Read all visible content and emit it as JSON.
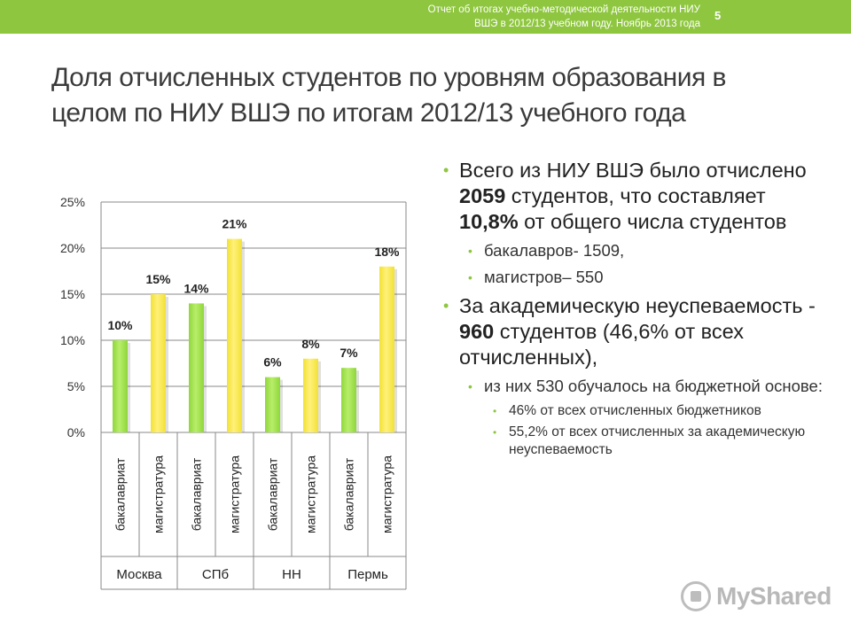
{
  "header": {
    "line1": "Отчет об итогах учебно-методической деятельности НИУ",
    "line2": "ВШЭ в 2012/13 учебном году. Ноябрь 2013 года",
    "page_number": "5"
  },
  "title": "Доля отчисленных студентов по уровням образования в целом по НИУ ВШЭ по итогам 2012/13 учебного года",
  "chart_data": {
    "type": "bar",
    "categories": [
      "бакалавриат",
      "магистратура",
      "бакалавриат",
      "магистратура",
      "бакалавриат",
      "магистратура",
      "бакалавриат",
      "магистратура"
    ],
    "groups": [
      "Москва",
      "СПб",
      "НН",
      "Пермь"
    ],
    "values": [
      10,
      15,
      14,
      21,
      6,
      8,
      7,
      18
    ],
    "data_labels": [
      "10%",
      "15%",
      "14%",
      "21%",
      "6%",
      "8%",
      "7%",
      "18%"
    ],
    "y_ticks": [
      "0%",
      "5%",
      "10%",
      "15%",
      "20%",
      "25%"
    ],
    "ylim": [
      0,
      25
    ],
    "grid": true,
    "colors": {
      "bachelor": "#8fd63c",
      "master": "#f2e135"
    }
  },
  "bullets": {
    "b1_pre": "Всего из НИУ ВШЭ было отчислено ",
    "b1_num": "2059",
    "b1_mid": "  студентов, что составляет ",
    "b1_pct": "10,8%",
    "b1_post": "  от общего числа студентов",
    "b1_sub1": "бакалавров- 1509,",
    "b1_sub2": "магистров– 550",
    "b2_pre": "За академическую неуспеваемость  - ",
    "b2_num": "960",
    "b2_post": " студентов  (46,6% от всех отчисленных),",
    "b2_sub1": "из них 530 обучалось на бюджетной основе:",
    "b2_sub1_a": "46% от всех отчисленных бюджетников",
    "b2_sub1_b": "55,2% от всех отчисленных за академическую неуспеваемость"
  },
  "watermark": {
    "text": "MyShared",
    "icon": "myshared-logo-icon"
  }
}
